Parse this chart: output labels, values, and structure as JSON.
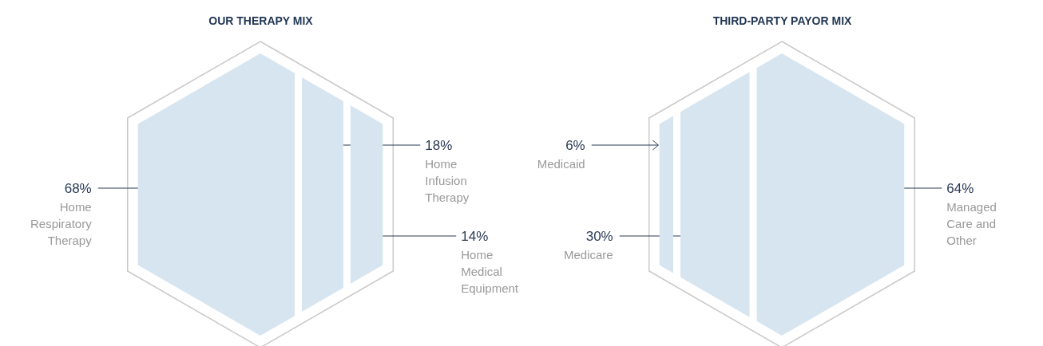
{
  "chart_data": [
    {
      "type": "other",
      "title": "OUR THERAPY MIX",
      "categories": [
        "Home Respiratory Therapy",
        "Home Infusion Therapy",
        "Home Medical Equipment"
      ],
      "values": [
        68,
        18,
        14
      ],
      "value_labels": [
        "68%",
        "18%",
        "14%"
      ],
      "colors": [
        "#d6e5f0",
        "#d6e5f0",
        "#d6e5f0"
      ]
    },
    {
      "type": "other",
      "title": "THIRD-PARTY PAYOR MIX",
      "categories": [
        "Medicaid",
        "Medicare",
        "Managed Care and Other"
      ],
      "values": [
        6,
        30,
        64
      ],
      "value_labels": [
        "6%",
        "30%",
        "64%"
      ],
      "colors": [
        "#d6e5f0",
        "#d6e5f0",
        "#d6e5f0"
      ]
    }
  ]
}
